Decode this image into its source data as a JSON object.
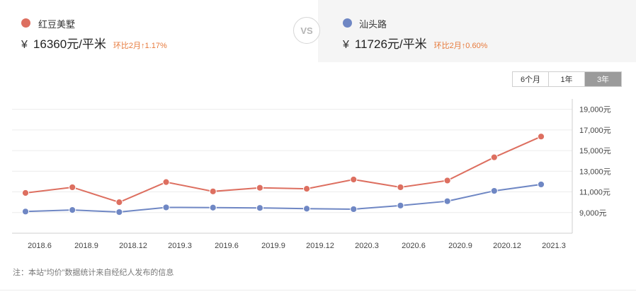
{
  "compare": {
    "left": {
      "name": "红豆美墅",
      "currency": "¥",
      "price": "16360",
      "unit": "元/平米",
      "change": "环比2月↑1.17%",
      "color": "#dd6f60"
    },
    "vs_label": "VS",
    "right": {
      "name": "汕头路",
      "currency": "¥",
      "price": "11726",
      "unit": "元/平米",
      "change": "环比2月↑0.60%",
      "color": "#6f87c4"
    }
  },
  "range_buttons": [
    {
      "label": "6个月",
      "active": false
    },
    {
      "label": "1年",
      "active": false
    },
    {
      "label": "3年",
      "active": true
    }
  ],
  "chart_data": {
    "type": "line",
    "x_tick_labels": [
      "2018.6",
      "2018.9",
      "2018.12",
      "2019.3",
      "2019.6",
      "2019.9",
      "2019.12",
      "2020.3",
      "2020.6",
      "2020.9",
      "2020.12",
      "2021.3"
    ],
    "y_tick_labels": [
      "9,000元",
      "11,000元",
      "13,000元",
      "15,000元",
      "17,000元",
      "19,000元"
    ],
    "y_ticks": [
      9000,
      11000,
      13000,
      15000,
      17000,
      19000
    ],
    "ylim": [
      7000,
      20000
    ],
    "y_axis_position": "right",
    "grid": true,
    "point_count": 12,
    "series": [
      {
        "name": "红豆美墅",
        "color": "#dd6f60",
        "values": [
          10900,
          11450,
          10000,
          11950,
          11050,
          11400,
          11300,
          12200,
          11450,
          12100,
          14350,
          16360
        ]
      },
      {
        "name": "汕头路",
        "color": "#6f87c4",
        "values": [
          9100,
          9250,
          9050,
          9500,
          9480,
          9450,
          9380,
          9330,
          9680,
          10100,
          11100,
          11726
        ]
      }
    ]
  },
  "note": "注：本站“均价”数据统计来自经纪人发布的信息"
}
